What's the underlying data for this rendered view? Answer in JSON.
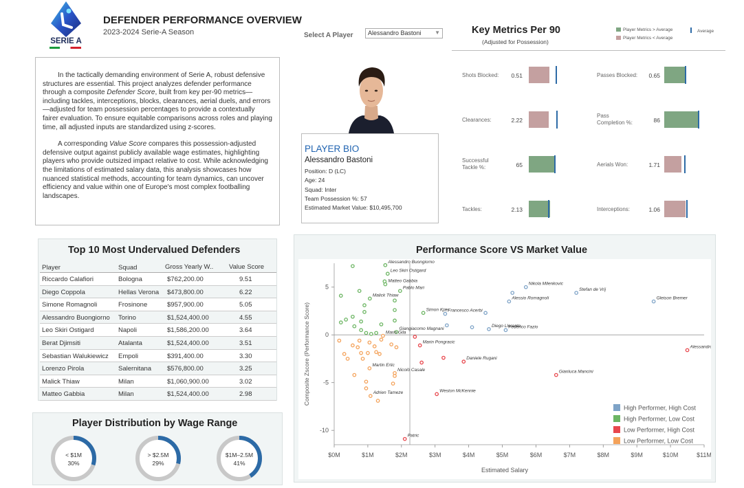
{
  "header": {
    "logo_text": "SERIE A",
    "title": "DEFENDER PERFORMANCE OVERVIEW",
    "subtitle": "2023-2024 Serie-A Season",
    "select_label": "Select A Player",
    "selected_player": "Alessandro Bastoni"
  },
  "intro": {
    "p1_pre": "In the tactically demanding environment of Serie A, robust defensive structures are essential. This project analyzes defender performance through a composite ",
    "p1_em": "Defender Score",
    "p1_post": ", built from key per-90 metrics—including tackles, interceptions, blocks, clearances, aerial duels, and errors—adjusted for team possession percentages to provide a contextually fairer evaluation. To ensure equitable comparisons across roles and playing time, all adjusted inputs are standardized using z-scores.",
    "p2_pre": "A corresponding ",
    "p2_em": "Value Score",
    "p2_post": " compares this possession-adjusted defensive output against publicly available wage estimates, highlighting players who provide outsized impact relative to cost. While acknowledging the limitations of estimated salary data, this analysis showcases how nuanced statistical methods, accounting for team dynamics, can uncover efficiency and value within one of Europe's most complex footballing landscapes."
  },
  "bio": {
    "heading": "PLAYER BIO",
    "name": "Alessandro Bastoni",
    "position": "Position: D (LC)",
    "age": "Age: 24",
    "squad": "Squad: Inter",
    "possession": "Team Possession %: 57",
    "market_value": "Estimated Market Value: $10,495,700"
  },
  "key_metrics": {
    "title": "Key Metrics Per 90",
    "subtitle": "(Adjusted for Possession)",
    "legend_above": "Player Metrics > Average",
    "legend_below": "Player Metrics < Average",
    "legend_avg": "Average",
    "color_above": "#7fa682",
    "color_below": "#c4a0a0",
    "color_avg": "#2c6aa6",
    "left": [
      {
        "label": "Shots Blocked:",
        "value": "0.51",
        "player": 0.51,
        "average": 0.68,
        "max": 1.0,
        "above": false
      },
      {
        "label": "Clearances:",
        "value": "2.22",
        "player": 2.22,
        "average": 3.1,
        "max": 4.5,
        "above": false
      },
      {
        "label": "Successful Tackle %:",
        "value": "65",
        "player": 65,
        "average": 63,
        "max": 100,
        "above": true
      },
      {
        "label": "Tackles:",
        "value": "2.13",
        "player": 2.13,
        "average": 1.95,
        "max": 4.0,
        "above": true
      }
    ],
    "right": [
      {
        "label": "Passes Blocked:",
        "value": "0.65",
        "player": 0.65,
        "average": 0.62,
        "max": 1.2,
        "above": true
      },
      {
        "label": "Pass Completion %:",
        "value": "86",
        "player": 86,
        "average": 85,
        "max": 100,
        "above": true
      },
      {
        "label": "Aerials Won:",
        "value": "1.71",
        "player": 1.71,
        "average": 2.0,
        "max": 4.0,
        "above": false
      },
      {
        "label": "Interceptions:",
        "value": "1.06",
        "player": 1.06,
        "average": 1.1,
        "max": 2.0,
        "above": false
      }
    ]
  },
  "undervalued": {
    "title": "Top 10 Most Undervalued Defenders",
    "headers": [
      "Player",
      "Squad",
      "Gross Yearly W..",
      "Value Score"
    ],
    "rows": [
      [
        "Riccardo Calafiori",
        "Bologna",
        "$762,200.00",
        "9.51"
      ],
      [
        "Diego Coppola",
        "Hellas Verona",
        "$473,800.00",
        "6.22"
      ],
      [
        "Simone Romagnoli",
        "Frosinone",
        "$957,900.00",
        "5.05"
      ],
      [
        "Alessandro Buongiorno",
        "Torino",
        "$1,524,400.00",
        "4.55"
      ],
      [
        "Leo Skiri Ostigard",
        "Napoli",
        "$1,586,200.00",
        "3.64"
      ],
      [
        "Berat Djimsiti",
        "Atalanta",
        "$1,524,400.00",
        "3.51"
      ],
      [
        "Sebastian Walukiewicz",
        "Empoli",
        "$391,400.00",
        "3.30"
      ],
      [
        "Lorenzo Pirola",
        "Salernitana",
        "$576,800.00",
        "3.25"
      ],
      [
        "Malick Thiaw",
        "Milan",
        "$1,060,900.00",
        "3.02"
      ],
      [
        "Matteo Gabbia",
        "Milan",
        "$1,524,400.00",
        "2.98"
      ]
    ]
  },
  "distribution": {
    "title": "Player Distribution by Wage Range",
    "ring_color": "#2c6aa6",
    "track_color": "#c8c8c8",
    "items": [
      {
        "range": "< $1M",
        "pct": "30%",
        "value": 0.3
      },
      {
        "range": "> $2.5M",
        "pct": "29%",
        "value": 0.29
      },
      {
        "range": "$1M–2.5M",
        "pct": "41%",
        "value": 0.41
      }
    ]
  },
  "chart_data": {
    "type": "scatter",
    "title": "Performance Score VS Market Value",
    "xlabel": "Estimated Salary",
    "ylabel": "Composite Zscore (Performance Score)",
    "xlim": [
      0,
      11
    ],
    "ylim": [
      -11.5,
      7.5
    ],
    "x_ticks": [
      0,
      1,
      2,
      3,
      4,
      5,
      6,
      7,
      8,
      9,
      10,
      11
    ],
    "x_tick_labels": [
      "$0M",
      "$1M",
      "$2M",
      "$3M",
      "$4M",
      "$5M",
      "$6M",
      "$7M",
      "$8M",
      "$9M",
      "$10M",
      "$11M"
    ],
    "y_ticks": [
      5,
      0,
      -5,
      -10
    ],
    "y_tick_labels": [
      "5",
      "0",
      "-5",
      "-10"
    ],
    "reference_lines": {
      "x": 2.25,
      "y": 0
    },
    "legend": [
      {
        "name": "High Performer, High Cost",
        "color": "#7ea3c7"
      },
      {
        "name": "High Performer, Low Cost",
        "color": "#6cb563"
      },
      {
        "name": "Low Performer, High Cost",
        "color": "#e8474d"
      },
      {
        "name": "Low Performer, Low Cost",
        "color": "#f4a25a"
      }
    ],
    "points": [
      {
        "x": 1.52,
        "y": 7.3,
        "g": 1,
        "label": "Alessandro Buongiorno"
      },
      {
        "x": 1.59,
        "y": 6.4,
        "g": 1,
        "label": "Leo Skiri Ostigard"
      },
      {
        "x": 1.52,
        "y": 5.3,
        "g": 1,
        "label": "Matteo Gabbia"
      },
      {
        "x": 1.96,
        "y": 4.6,
        "g": 1,
        "label": "Pablo Mari"
      },
      {
        "x": 1.06,
        "y": 3.8,
        "g": 1,
        "label": "Malick Thiaw"
      },
      {
        "x": 2.65,
        "y": 2.3,
        "g": 1,
        "label": "Simon Kjær"
      },
      {
        "x": 3.3,
        "y": 2.2,
        "g": 0,
        "label": "Francesco Acerbi"
      },
      {
        "x": 5.7,
        "y": 5.0,
        "g": 0,
        "label": "Nikola Milenkovic"
      },
      {
        "x": 7.2,
        "y": 4.4,
        "g": 0,
        "label": "Stefan de Vrij"
      },
      {
        "x": 5.2,
        "y": 3.5,
        "g": 0,
        "label": "Alessio Romagnoli"
      },
      {
        "x": 9.5,
        "y": 3.5,
        "g": 0,
        "label": "Gleison Bremer"
      },
      {
        "x": 4.6,
        "y": 0.6,
        "g": 0,
        "label": "Diego Llorente"
      },
      {
        "x": 5.1,
        "y": 0.5,
        "g": 0,
        "label": "Federico Fazio"
      },
      {
        "x": 1.85,
        "y": 0.3,
        "g": 1,
        "label": "Giangiacomo Magnani"
      },
      {
        "x": 1.45,
        "y": -0.1,
        "g": 3,
        "label": "Mario Gila"
      },
      {
        "x": 2.55,
        "y": -1.1,
        "g": 2,
        "label": "Marin Pongracic"
      },
      {
        "x": 3.85,
        "y": -2.8,
        "g": 2,
        "label": "Daniele Rugani"
      },
      {
        "x": 10.5,
        "y": -1.6,
        "g": 2,
        "label": "Alessandro Bastoni"
      },
      {
        "x": 1.05,
        "y": -3.5,
        "g": 3,
        "label": "Martin Erlic"
      },
      {
        "x": 1.8,
        "y": -4.0,
        "g": 3,
        "label": "Nicolò Casale"
      },
      {
        "x": 6.6,
        "y": -4.2,
        "g": 2,
        "label": "Gianluca Mancini"
      },
      {
        "x": 3.05,
        "y": -6.2,
        "g": 2,
        "label": "Weston McKennie"
      },
      {
        "x": 1.08,
        "y": -6.4,
        "g": 3,
        "label": "Adrien Tameze"
      },
      {
        "x": 2.1,
        "y": -10.9,
        "g": 2,
        "label": "Patric"
      },
      {
        "x": 0.55,
        "y": 7.2,
        "g": 1,
        "label": ""
      },
      {
        "x": 0.2,
        "y": 4.1,
        "g": 1,
        "label": ""
      },
      {
        "x": 0.75,
        "y": 4.6,
        "g": 1,
        "label": ""
      },
      {
        "x": 0.9,
        "y": 3.1,
        "g": 1,
        "label": ""
      },
      {
        "x": 0.9,
        "y": 2.4,
        "g": 1,
        "label": ""
      },
      {
        "x": 0.55,
        "y": 1.9,
        "g": 1,
        "label": ""
      },
      {
        "x": 0.35,
        "y": 1.6,
        "g": 1,
        "label": ""
      },
      {
        "x": 0.8,
        "y": 1.4,
        "g": 1,
        "label": ""
      },
      {
        "x": 0.2,
        "y": 1.3,
        "g": 1,
        "label": ""
      },
      {
        "x": 0.6,
        "y": 0.9,
        "g": 1,
        "label": ""
      },
      {
        "x": 0.8,
        "y": 0.5,
        "g": 1,
        "label": ""
      },
      {
        "x": 0.95,
        "y": 0.2,
        "g": 1,
        "label": ""
      },
      {
        "x": 1.1,
        "y": 0.1,
        "g": 1,
        "label": ""
      },
      {
        "x": 1.8,
        "y": 1.5,
        "g": 1,
        "label": ""
      },
      {
        "x": 1.8,
        "y": 2.6,
        "g": 1,
        "label": ""
      },
      {
        "x": 1.8,
        "y": 3.6,
        "g": 1,
        "label": ""
      },
      {
        "x": 1.4,
        "y": 1.1,
        "g": 1,
        "label": ""
      },
      {
        "x": 1.5,
        "y": 5.6,
        "g": 1,
        "label": ""
      },
      {
        "x": 1.25,
        "y": 0.2,
        "g": 1,
        "label": ""
      },
      {
        "x": 0.15,
        "y": -0.6,
        "g": 3,
        "label": ""
      },
      {
        "x": 0.3,
        "y": -2.0,
        "g": 3,
        "label": ""
      },
      {
        "x": 0.4,
        "y": -2.5,
        "g": 3,
        "label": ""
      },
      {
        "x": 0.55,
        "y": -1.1,
        "g": 3,
        "label": ""
      },
      {
        "x": 0.7,
        "y": -1.3,
        "g": 3,
        "label": ""
      },
      {
        "x": 0.75,
        "y": -0.6,
        "g": 3,
        "label": ""
      },
      {
        "x": 0.8,
        "y": -1.9,
        "g": 3,
        "label": ""
      },
      {
        "x": 0.85,
        "y": -2.5,
        "g": 3,
        "label": ""
      },
      {
        "x": 1.0,
        "y": -1.9,
        "g": 3,
        "label": ""
      },
      {
        "x": 1.05,
        "y": -0.8,
        "g": 3,
        "label": ""
      },
      {
        "x": 1.2,
        "y": -1.2,
        "g": 3,
        "label": ""
      },
      {
        "x": 1.25,
        "y": -1.8,
        "g": 3,
        "label": ""
      },
      {
        "x": 1.35,
        "y": -2.0,
        "g": 3,
        "label": ""
      },
      {
        "x": 1.4,
        "y": -0.5,
        "g": 3,
        "label": ""
      },
      {
        "x": 1.7,
        "y": -1.0,
        "g": 3,
        "label": ""
      },
      {
        "x": 1.85,
        "y": -1.3,
        "g": 3,
        "label": ""
      },
      {
        "x": 1.8,
        "y": -4.3,
        "g": 3,
        "label": ""
      },
      {
        "x": 1.75,
        "y": -5.1,
        "g": 3,
        "label": ""
      },
      {
        "x": 0.95,
        "y": -4.9,
        "g": 3,
        "label": ""
      },
      {
        "x": 0.95,
        "y": -5.6,
        "g": 3,
        "label": ""
      },
      {
        "x": 0.6,
        "y": -4.2,
        "g": 3,
        "label": ""
      },
      {
        "x": 1.3,
        "y": -6.9,
        "g": 3,
        "label": ""
      },
      {
        "x": 2.4,
        "y": -0.2,
        "g": 2,
        "label": ""
      },
      {
        "x": 2.6,
        "y": -2.9,
        "g": 2,
        "label": ""
      },
      {
        "x": 3.25,
        "y": -2.4,
        "g": 2,
        "label": ""
      },
      {
        "x": 3.35,
        "y": 1.0,
        "g": 0,
        "label": ""
      },
      {
        "x": 4.1,
        "y": 0.8,
        "g": 0,
        "label": ""
      },
      {
        "x": 4.5,
        "y": 2.3,
        "g": 0,
        "label": ""
      },
      {
        "x": 5.3,
        "y": 4.4,
        "g": 0,
        "label": ""
      }
    ]
  }
}
